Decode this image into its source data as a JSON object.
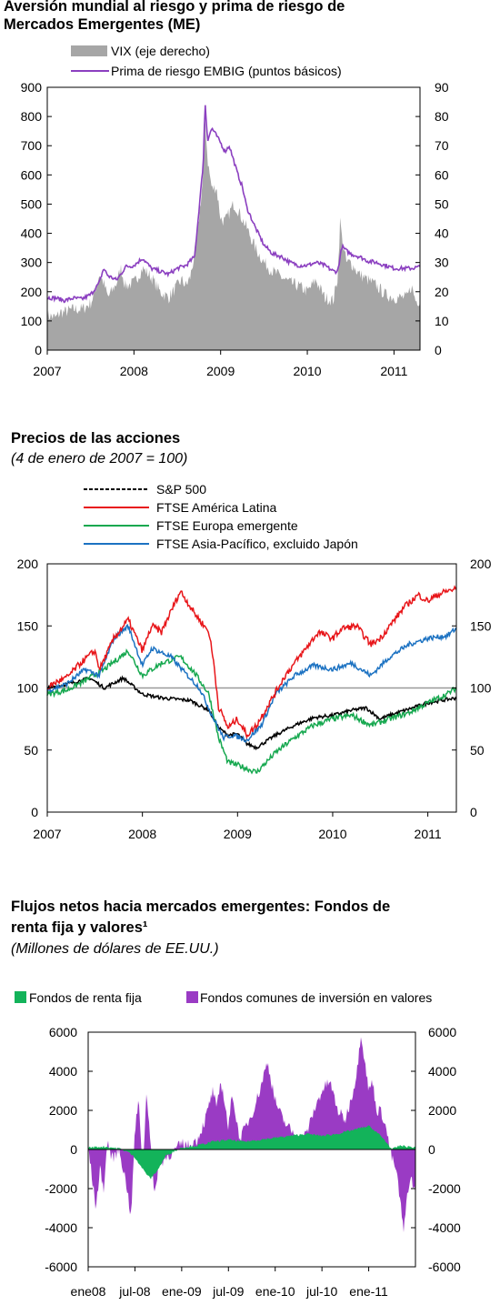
{
  "charts": {
    "c1": {
      "title_line1": "Aversión mundial al riesgo y  prima de riesgo de",
      "title_line2": "Mercados Emergentes (ME)"
    },
    "c2": {
      "title": "Precios de las acciones",
      "subtitle": "(4 de enero de 2007 = 100)"
    },
    "c3": {
      "title_line1": "Flujos netos hacia mercados emergentes: Fondos de",
      "title_line2": "renta fija y valores¹",
      "subtitle": "(Millones de dólares de EE.UU.)"
    }
  },
  "colors": {
    "vix": "#a6a6a6",
    "embig": "#8b3fc0",
    "sp500": "#000000",
    "latam": "#e8161a",
    "europe": "#16a84f",
    "asia": "#1c72c2",
    "bond_funds": "#13b35a",
    "equity_funds": "#9a3bc4",
    "reference_line": "#999999"
  },
  "chart_data": [
    {
      "type": "area",
      "legend": [
        "VIX (eje derecho)",
        "Prima de riesgo EMBIG (puntos básicos)"
      ],
      "x_ticks": [
        "2007",
        "2008",
        "2009",
        "2010",
        "2011"
      ],
      "x_range": [
        2007.0,
        2011.3
      ],
      "y_left_ticks": [
        "0",
        "100",
        "200",
        "300",
        "400",
        "500",
        "600",
        "700",
        "800",
        "900"
      ],
      "y_right_ticks": [
        "0",
        "10",
        "20",
        "30",
        "40",
        "50",
        "60",
        "70",
        "80",
        "90"
      ],
      "ylim_left": [
        0,
        900
      ],
      "ylim_right": [
        0,
        90
      ],
      "series": [
        {
          "name": "VIX (eje derecho)",
          "axis": "right",
          "style": "area",
          "x": [
            2007.0,
            2007.1,
            2007.15,
            2007.2,
            2007.3,
            2007.4,
            2007.5,
            2007.55,
            2007.6,
            2007.65,
            2007.7,
            2007.8,
            2007.85,
            2007.9,
            2008.0,
            2008.1,
            2008.2,
            2008.3,
            2008.4,
            2008.5,
            2008.55,
            2008.6,
            2008.65,
            2008.7,
            2008.75,
            2008.8,
            2008.82,
            2008.85,
            2008.9,
            2008.95,
            2009.0,
            2009.05,
            2009.1,
            2009.15,
            2009.2,
            2009.3,
            2009.4,
            2009.5,
            2009.6,
            2009.7,
            2009.8,
            2009.9,
            2010.0,
            2010.1,
            2010.2,
            2010.3,
            2010.35,
            2010.38,
            2010.4,
            2010.45,
            2010.5,
            2010.6,
            2010.7,
            2010.8,
            2010.9,
            2011.0,
            2011.1,
            2011.15,
            2011.2,
            2011.25,
            2011.3
          ],
          "values": [
            12,
            11,
            13,
            13,
            14,
            14,
            16,
            20,
            26,
            23,
            18,
            23,
            28,
            22,
            23,
            28,
            25,
            20,
            18,
            22,
            24,
            22,
            25,
            33,
            45,
            60,
            80,
            65,
            55,
            56,
            45,
            44,
            47,
            50,
            48,
            42,
            35,
            30,
            27,
            25,
            23,
            22,
            20,
            24,
            18,
            17,
            25,
            45,
            38,
            30,
            30,
            26,
            24,
            22,
            19,
            18,
            18,
            18,
            22,
            17,
            17
          ]
        },
        {
          "name": "Prima de riesgo EMBIG (puntos básicos)",
          "axis": "left",
          "style": "line",
          "x": [
            2007.0,
            2007.1,
            2007.2,
            2007.3,
            2007.4,
            2007.5,
            2007.6,
            2007.65,
            2007.7,
            2007.8,
            2007.85,
            2007.9,
            2008.0,
            2008.1,
            2008.2,
            2008.3,
            2008.4,
            2008.5,
            2008.6,
            2008.7,
            2008.75,
            2008.8,
            2008.82,
            2008.85,
            2008.9,
            2009.0,
            2009.05,
            2009.1,
            2009.15,
            2009.2,
            2009.25,
            2009.3,
            2009.4,
            2009.5,
            2009.6,
            2009.7,
            2009.8,
            2009.9,
            2010.0,
            2010.1,
            2010.2,
            2010.3,
            2010.35,
            2010.4,
            2010.45,
            2010.5,
            2010.6,
            2010.7,
            2010.8,
            2010.9,
            2011.0,
            2011.1,
            2011.2,
            2011.3
          ],
          "values": [
            180,
            178,
            170,
            178,
            175,
            190,
            230,
            280,
            255,
            240,
            260,
            285,
            290,
            315,
            280,
            270,
            260,
            280,
            290,
            320,
            480,
            640,
            850,
            720,
            760,
            710,
            680,
            700,
            650,
            600,
            560,
            490,
            420,
            360,
            330,
            320,
            300,
            290,
            290,
            300,
            290,
            270,
            270,
            355,
            340,
            330,
            320,
            305,
            300,
            290,
            280,
            280,
            280,
            285
          ]
        }
      ]
    },
    {
      "type": "line",
      "legend": [
        "S&P 500",
        "FTSE América Latina",
        "FTSE Europa emergente",
        "FTSE Asia-Pacífico, excluido Japón"
      ],
      "x_ticks": [
        "2007",
        "2008",
        "2009",
        "2010",
        "2011"
      ],
      "x_range": [
        2007.0,
        2011.3
      ],
      "y_ticks": [
        "0",
        "50",
        "100",
        "150",
        "200"
      ],
      "ylim": [
        0,
        200
      ],
      "reference_line": 100,
      "series": [
        {
          "name": "S&P 500",
          "x": [
            2007.0,
            2007.2,
            2007.45,
            2007.6,
            2007.8,
            2008.0,
            2008.2,
            2008.5,
            2008.7,
            2008.8,
            2008.9,
            2009.0,
            2009.1,
            2009.2,
            2009.4,
            2009.6,
            2009.8,
            2010.0,
            2010.2,
            2010.35,
            2010.5,
            2010.6,
            2010.8,
            2011.0,
            2011.3
          ],
          "values": [
            100,
            103,
            108,
            100,
            108,
            95,
            92,
            90,
            82,
            68,
            62,
            63,
            55,
            52,
            62,
            70,
            76,
            78,
            82,
            84,
            75,
            78,
            83,
            88,
            92
          ]
        },
        {
          "name": "FTSE América Latina",
          "x": [
            2007.0,
            2007.1,
            2007.2,
            2007.35,
            2007.5,
            2007.55,
            2007.7,
            2007.85,
            2008.0,
            2008.1,
            2008.2,
            2008.35,
            2008.4,
            2008.55,
            2008.7,
            2008.75,
            2008.8,
            2008.9,
            2009.0,
            2009.1,
            2009.2,
            2009.35,
            2009.5,
            2009.7,
            2009.85,
            2010.0,
            2010.1,
            2010.25,
            2010.4,
            2010.5,
            2010.6,
            2010.75,
            2010.9,
            2011.0,
            2011.1,
            2011.2,
            2011.3
          ],
          "values": [
            100,
            105,
            108,
            120,
            130,
            115,
            140,
            155,
            130,
            150,
            145,
            170,
            178,
            160,
            145,
            120,
            85,
            68,
            75,
            62,
            70,
            90,
            110,
            130,
            145,
            140,
            148,
            150,
            135,
            140,
            150,
            165,
            175,
            170,
            175,
            178,
            180
          ]
        },
        {
          "name": "FTSE Europa emergente",
          "x": [
            2007.0,
            2007.2,
            2007.4,
            2007.6,
            2007.85,
            2008.0,
            2008.2,
            2008.4,
            2008.55,
            2008.7,
            2008.8,
            2008.9,
            2009.0,
            2009.1,
            2009.2,
            2009.4,
            2009.6,
            2009.8,
            2010.0,
            2010.2,
            2010.4,
            2010.6,
            2010.8,
            2011.0,
            2011.2,
            2011.3
          ],
          "values": [
            95,
            98,
            106,
            115,
            130,
            110,
            120,
            125,
            112,
            95,
            60,
            40,
            38,
            35,
            32,
            48,
            60,
            70,
            75,
            78,
            70,
            75,
            80,
            88,
            95,
            100
          ]
        },
        {
          "name": "FTSE Asia-Pacífico, excluido Japón",
          "x": [
            2007.0,
            2007.2,
            2007.4,
            2007.55,
            2007.7,
            2007.85,
            2008.0,
            2008.1,
            2008.3,
            2008.45,
            2008.6,
            2008.75,
            2008.85,
            2008.95,
            2009.1,
            2009.25,
            2009.4,
            2009.6,
            2009.8,
            2010.0,
            2010.2,
            2010.4,
            2010.6,
            2010.8,
            2011.0,
            2011.2,
            2011.3
          ],
          "values": [
            98,
            103,
            115,
            110,
            140,
            150,
            118,
            132,
            125,
            112,
            100,
            75,
            60,
            62,
            58,
            70,
            95,
            110,
            118,
            115,
            120,
            110,
            125,
            135,
            140,
            142,
            148
          ]
        }
      ]
    },
    {
      "type": "area",
      "legend": [
        "Fondos de renta fija",
        "Fondos comunes de inversión en valores"
      ],
      "x_ticks": [
        "ene08",
        "jul-08",
        "ene-09",
        "jul-09",
        "ene-10",
        "jul-10",
        "ene-11"
      ],
      "x_range": [
        0,
        42
      ],
      "y_left_ticks": [
        "-6000",
        "-4000",
        "-2000",
        "0",
        "2000",
        "4000",
        "6000"
      ],
      "y_right_ticks": [
        "-6000",
        "-4000",
        "-2000",
        "0",
        "2000",
        "4000",
        "6000"
      ],
      "ylim": [
        -6000,
        6000
      ],
      "series": [
        {
          "name": "Fondos comunes de inversión en valores",
          "x": [
            0,
            0.5,
            1,
            1.5,
            2,
            2.5,
            3,
            4,
            5,
            5.5,
            6,
            6.5,
            7,
            7.5,
            8,
            8.5,
            9,
            10,
            11,
            12,
            13,
            14,
            15,
            16,
            16.5,
            17,
            17.5,
            18,
            18.5,
            19,
            19.5,
            20,
            21,
            22,
            23,
            24,
            25,
            26,
            27,
            28,
            29,
            30,
            31,
            32,
            33,
            34,
            34.5,
            35,
            35.5,
            36,
            36.5,
            37,
            37.5,
            38,
            38.5,
            39,
            39.5,
            40,
            40.5,
            41,
            41.5,
            42
          ],
          "values": [
            200,
            -1500,
            -3000,
            -1000,
            -2000,
            500,
            -500,
            0,
            -2000,
            -3500,
            1000,
            2500,
            -1000,
            3000,
            500,
            -2500,
            -800,
            -400,
            -100,
            300,
            200,
            500,
            1500,
            3000,
            2000,
            3500,
            2500,
            1000,
            3000,
            1500,
            500,
            1000,
            1800,
            3000,
            4500,
            2500,
            1500,
            1000,
            500,
            800,
            2000,
            3000,
            3500,
            2000,
            1500,
            3000,
            4000,
            6000,
            4500,
            3000,
            3500,
            2000,
            2000,
            1500,
            500,
            -500,
            -1000,
            -2500,
            -4300,
            -2000,
            -1500,
            -2300
          ]
        },
        {
          "name": "Fondos de renta fija",
          "x": [
            0,
            2,
            4,
            5,
            6,
            7,
            8,
            9,
            10,
            11,
            12,
            14,
            16,
            18,
            20,
            22,
            24,
            26,
            28,
            30,
            32,
            34,
            36,
            37,
            38,
            39,
            40,
            41,
            42
          ],
          "values": [
            100,
            150,
            50,
            -100,
            -400,
            -1000,
            -1500,
            -1000,
            -300,
            -100,
            100,
            200,
            400,
            500,
            400,
            500,
            600,
            700,
            800,
            700,
            800,
            1000,
            1200,
            900,
            500,
            0,
            200,
            150,
            100
          ]
        }
      ]
    }
  ]
}
